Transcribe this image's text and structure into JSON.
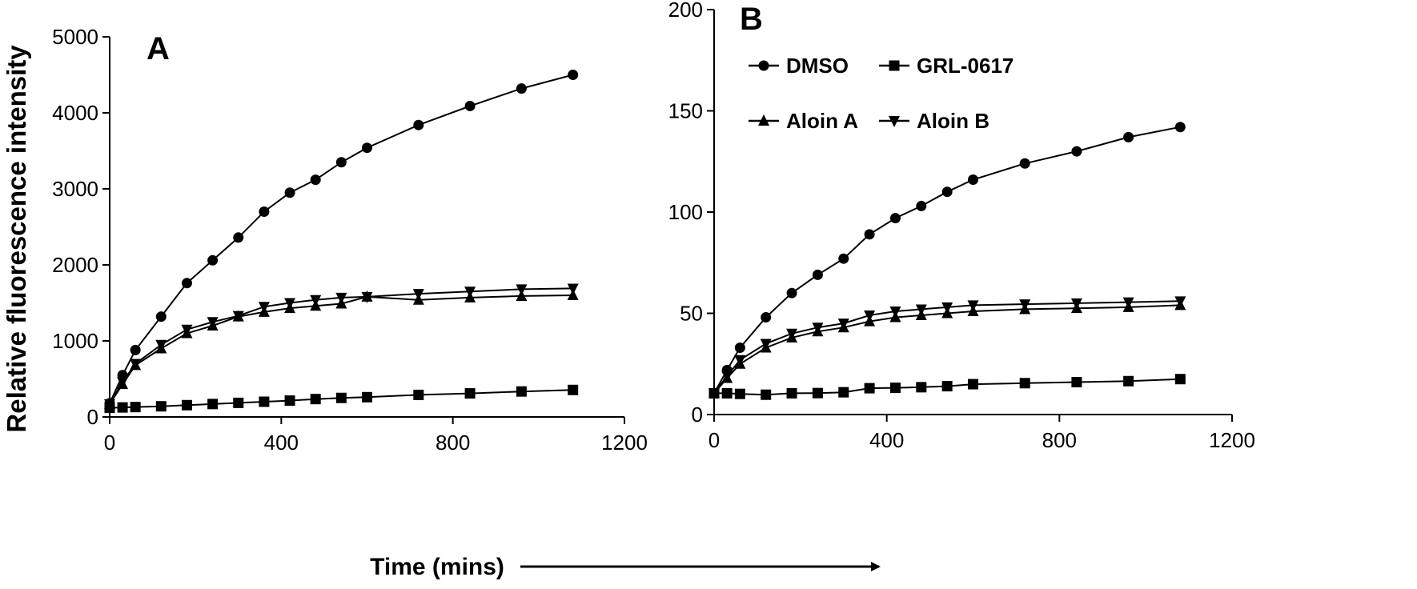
{
  "figure": {
    "xlabel": "Time (mins)",
    "colors": {
      "line": "#000000",
      "background": "#ffffff"
    }
  },
  "chart_data": [
    {
      "type": "line",
      "panel_label": "A",
      "title": "",
      "xlabel": "Time (mins)",
      "ylabel": "Relative fluorescence intensity",
      "xlim": [
        0,
        1200
      ],
      "ylim": [
        0,
        5000
      ],
      "xticks": [
        0,
        400,
        800,
        1200
      ],
      "yticks": [
        0,
        1000,
        2000,
        3000,
        4000,
        5000
      ],
      "grid": false,
      "legend": false,
      "series": [
        {
          "name": "DMSO",
          "marker": "circle",
          "x": [
            0,
            30,
            60,
            120,
            180,
            240,
            300,
            360,
            420,
            480,
            540,
            600,
            720,
            840,
            960,
            1080
          ],
          "y": [
            180,
            550,
            880,
            1320,
            1760,
            2060,
            2360,
            2700,
            2950,
            3120,
            3350,
            3540,
            3840,
            4090,
            4320,
            4500
          ]
        },
        {
          "name": "GRL-0617",
          "marker": "square",
          "x": [
            0,
            30,
            60,
            120,
            180,
            240,
            300,
            360,
            420,
            480,
            540,
            600,
            720,
            840,
            960,
            1080
          ],
          "y": [
            120,
            125,
            130,
            140,
            155,
            170,
            185,
            200,
            215,
            235,
            250,
            260,
            290,
            310,
            335,
            355
          ]
        },
        {
          "name": "Aloin A",
          "marker": "triangle-up",
          "x": [
            0,
            30,
            60,
            120,
            180,
            240,
            300,
            360,
            420,
            480,
            540,
            600,
            720,
            840,
            960,
            1080
          ],
          "y": [
            170,
            430,
            680,
            900,
            1100,
            1200,
            1320,
            1380,
            1430,
            1460,
            1490,
            1580,
            1540,
            1570,
            1590,
            1600
          ]
        },
        {
          "name": "Aloin B",
          "marker": "triangle-down",
          "x": [
            0,
            30,
            60,
            120,
            180,
            240,
            300,
            360,
            420,
            480,
            540,
            600,
            720,
            840,
            960,
            1080
          ],
          "y": [
            170,
            460,
            700,
            950,
            1150,
            1250,
            1330,
            1450,
            1500,
            1540,
            1570,
            1580,
            1620,
            1650,
            1680,
            1690
          ]
        }
      ]
    },
    {
      "type": "line",
      "panel_label": "B",
      "title": "",
      "xlabel": "Time (mins)",
      "ylabel": "",
      "xlim": [
        0,
        1200
      ],
      "ylim": [
        0,
        200
      ],
      "xticks": [
        0,
        400,
        800,
        1200
      ],
      "yticks": [
        0,
        50,
        100,
        150,
        200
      ],
      "grid": false,
      "legend": true,
      "legend_position": "top-left",
      "series": [
        {
          "name": "DMSO",
          "marker": "circle",
          "x": [
            0,
            30,
            60,
            120,
            180,
            240,
            300,
            360,
            420,
            480,
            540,
            600,
            720,
            840,
            960,
            1080
          ],
          "y": [
            10.5,
            22,
            33,
            48,
            60,
            69,
            77,
            89,
            97,
            103,
            110,
            116,
            124,
            130,
            137,
            142
          ]
        },
        {
          "name": "GRL-0617",
          "marker": "square",
          "x": [
            0,
            30,
            60,
            120,
            180,
            240,
            300,
            360,
            420,
            480,
            540,
            600,
            720,
            840,
            960,
            1080
          ],
          "y": [
            10.5,
            10.5,
            10.2,
            9.8,
            10.5,
            10.6,
            11,
            13,
            13.2,
            13.5,
            14,
            15,
            15.5,
            16,
            16.5,
            17.5
          ]
        },
        {
          "name": "Aloin A",
          "marker": "triangle-up",
          "x": [
            0,
            30,
            60,
            120,
            180,
            240,
            300,
            360,
            420,
            480,
            540,
            600,
            720,
            840,
            960,
            1080
          ],
          "y": [
            10.5,
            18,
            25,
            33,
            38,
            41,
            43,
            46,
            48,
            49,
            50,
            51,
            52,
            52.5,
            53,
            54
          ]
        },
        {
          "name": "Aloin B",
          "marker": "triangle-down",
          "x": [
            0,
            30,
            60,
            120,
            180,
            240,
            300,
            360,
            420,
            480,
            540,
            600,
            720,
            840,
            960,
            1080
          ],
          "y": [
            10.5,
            19,
            27,
            35,
            40,
            43,
            45,
            49,
            51,
            52,
            53,
            54,
            54.5,
            55,
            55.5,
            56
          ]
        }
      ]
    }
  ]
}
